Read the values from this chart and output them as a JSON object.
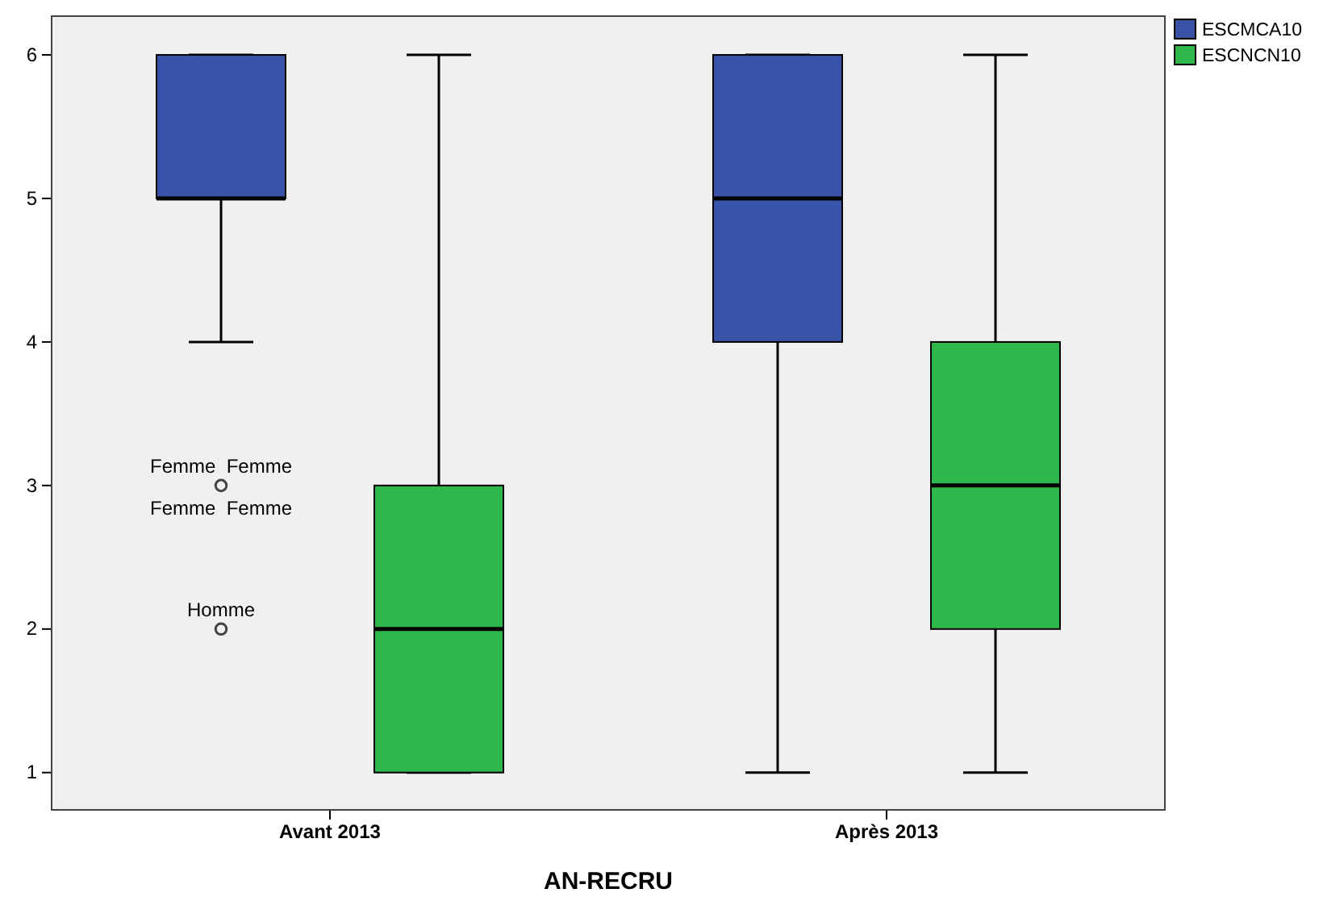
{
  "chart_data": {
    "type": "box",
    "xlabel": "AN-RECRU",
    "categories": [
      "Avant 2013",
      "Après 2013"
    ],
    "series": [
      {
        "name": "ESCMCA10",
        "color": "#3953a8",
        "boxes": [
          {
            "low": 4,
            "q1": 5,
            "median": 5,
            "q3": 6,
            "high": 6,
            "outliers": [
              3,
              2
            ]
          },
          {
            "low": 1,
            "q1": 4,
            "median": 5,
            "q3": 6,
            "high": 6
          }
        ]
      },
      {
        "name": "ESCNCN10",
        "color": "#2eb84b",
        "boxes": [
          {
            "low": 1,
            "q1": 1,
            "median": 2,
            "q3": 3,
            "high": 6
          },
          {
            "low": 1,
            "q1": 2,
            "median": 3,
            "q3": 4,
            "high": 6
          }
        ]
      }
    ],
    "ylim": [
      0.74,
      6.27
    ],
    "yticks": [
      1,
      2,
      3,
      4,
      5,
      6
    ],
    "legend": "top right",
    "marker": "circle",
    "annotations": [
      "Femme  Femme",
      "Femme  Femme",
      "Homme"
    ]
  }
}
